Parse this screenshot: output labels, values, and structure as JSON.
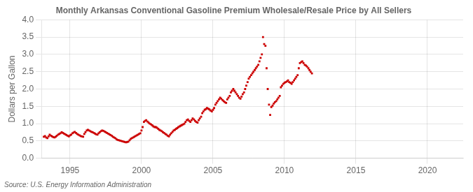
{
  "chart_data": {
    "type": "scatter",
    "title": "Monthly Arkansas Conventional Gasoline Premium Wholesale/Resale Price by All Sellers",
    "ylabel": "Dollars per Gallon",
    "source": "Source: U.S. Energy Information Administration",
    "color": "#cc0000",
    "marker": "square",
    "grid": true,
    "xlim": [
      1993.0,
      2022.5
    ],
    "ylim": [
      0.0,
      4.0
    ],
    "xticks": [
      1995,
      2000,
      2005,
      2010,
      2015,
      2020
    ],
    "yticks": [
      {
        "value": 0.0,
        "label": "0.0"
      },
      0.5,
      {
        "value": 1.0,
        "label": "1.0"
      },
      1.5,
      {
        "value": 2.0,
        "label": "2.0"
      },
      2.5,
      {
        "value": 3.0,
        "label": "3.0"
      },
      3.5,
      {
        "value": 4.0,
        "label": "4.0"
      }
    ],
    "x": [
      1993.17,
      1993.25,
      1993.33,
      1993.42,
      1993.5,
      1993.58,
      1993.67,
      1993.75,
      1993.83,
      1993.92,
      1994.0,
      1994.08,
      1994.17,
      1994.25,
      1994.33,
      1994.42,
      1994.5,
      1994.58,
      1994.67,
      1994.75,
      1994.83,
      1994.92,
      1995.0,
      1995.08,
      1995.17,
      1995.25,
      1995.33,
      1995.42,
      1995.5,
      1995.58,
      1995.67,
      1995.75,
      1995.83,
      1995.92,
      1996.0,
      1996.08,
      1996.17,
      1996.25,
      1996.33,
      1996.42,
      1996.5,
      1996.58,
      1996.67,
      1996.75,
      1996.83,
      1996.92,
      1997.0,
      1997.08,
      1997.17,
      1997.25,
      1997.33,
      1997.42,
      1997.5,
      1997.58,
      1997.67,
      1997.75,
      1997.83,
      1997.92,
      1998.0,
      1998.08,
      1998.17,
      1998.25,
      1998.33,
      1998.42,
      1998.5,
      1998.58,
      1998.67,
      1998.75,
      1998.83,
      1998.92,
      1999.0,
      1999.08,
      1999.17,
      1999.25,
      1999.33,
      1999.42,
      1999.5,
      1999.58,
      1999.67,
      1999.75,
      1999.83,
      1999.92,
      2000.0,
      2000.08,
      2000.17,
      2000.25,
      2000.33,
      2000.42,
      2000.5,
      2000.58,
      2000.67,
      2000.75,
      2000.83,
      2000.92,
      2001.0,
      2001.08,
      2001.17,
      2001.25,
      2001.33,
      2001.42,
      2001.5,
      2001.58,
      2001.67,
      2001.75,
      2001.83,
      2001.92,
      2002.0,
      2002.08,
      2002.17,
      2002.25,
      2002.33,
      2002.42,
      2002.5,
      2002.58,
      2002.67,
      2002.75,
      2002.83,
      2002.92,
      2003.0,
      2003.08,
      2003.17,
      2003.25,
      2003.33,
      2003.42,
      2003.5,
      2003.58,
      2003.67,
      2003.75,
      2003.83,
      2003.92,
      2004.0,
      2004.08,
      2004.17,
      2004.25,
      2004.33,
      2004.42,
      2004.5,
      2004.58,
      2004.67,
      2004.75,
      2004.83,
      2004.92,
      2005.0,
      2005.08,
      2005.17,
      2005.25,
      2005.33,
      2005.42,
      2005.5,
      2005.58,
      2005.67,
      2005.75,
      2005.83,
      2005.92,
      2006.0,
      2006.08,
      2006.17,
      2006.25,
      2006.33,
      2006.42,
      2006.5,
      2006.58,
      2006.67,
      2006.75,
      2006.83,
      2006.92,
      2007.0,
      2007.08,
      2007.17,
      2007.25,
      2007.33,
      2007.42,
      2007.5,
      2007.58,
      2007.67,
      2007.75,
      2007.83,
      2007.92,
      2008.0,
      2008.08,
      2008.17,
      2008.25,
      2008.33,
      2008.42,
      2008.5,
      2008.58,
      2008.67,
      2008.75,
      2008.83,
      2008.92,
      2009.0,
      2009.08,
      2009.17,
      2009.25,
      2009.33,
      2009.42,
      2009.5,
      2009.58,
      2009.67,
      2009.75,
      2009.83,
      2009.92,
      2010.0,
      2010.08,
      2010.17,
      2010.25,
      2010.33,
      2010.42,
      2010.5,
      2010.58,
      2010.67,
      2010.75,
      2010.83,
      2010.92,
      2011.0,
      2011.08,
      2011.17,
      2011.25,
      2011.33,
      2011.42,
      2011.5,
      2011.58,
      2011.67,
      2011.75,
      2011.83,
      2011.92
    ],
    "values": [
      0.62,
      0.64,
      0.6,
      0.58,
      0.63,
      0.68,
      0.65,
      0.63,
      0.61,
      0.6,
      0.62,
      0.65,
      0.68,
      0.7,
      0.72,
      0.75,
      0.73,
      0.71,
      0.69,
      0.67,
      0.65,
      0.63,
      0.66,
      0.68,
      0.72,
      0.74,
      0.76,
      0.73,
      0.7,
      0.68,
      0.66,
      0.64,
      0.63,
      0.62,
      0.7,
      0.75,
      0.8,
      0.82,
      0.8,
      0.78,
      0.76,
      0.75,
      0.73,
      0.71,
      0.69,
      0.68,
      0.72,
      0.75,
      0.78,
      0.8,
      0.79,
      0.77,
      0.75,
      0.73,
      0.71,
      0.69,
      0.67,
      0.65,
      0.62,
      0.6,
      0.58,
      0.55,
      0.53,
      0.52,
      0.51,
      0.5,
      0.49,
      0.48,
      0.47,
      0.46,
      0.47,
      0.48,
      0.52,
      0.56,
      0.58,
      0.6,
      0.62,
      0.64,
      0.66,
      0.68,
      0.7,
      0.72,
      0.8,
      0.9,
      1.05,
      1.08,
      1.1,
      1.06,
      1.03,
      1.0,
      0.98,
      0.95,
      0.92,
      0.9,
      0.9,
      0.88,
      0.85,
      0.82,
      0.8,
      0.78,
      0.75,
      0.73,
      0.7,
      0.68,
      0.65,
      0.63,
      0.68,
      0.72,
      0.76,
      0.8,
      0.82,
      0.85,
      0.87,
      0.9,
      0.92,
      0.94,
      0.96,
      0.98,
      1.0,
      1.05,
      1.1,
      1.12,
      1.08,
      1.05,
      1.1,
      1.15,
      1.12,
      1.08,
      1.05,
      1.03,
      1.1,
      1.15,
      1.2,
      1.3,
      1.35,
      1.4,
      1.42,
      1.45,
      1.43,
      1.41,
      1.38,
      1.35,
      1.4,
      1.45,
      1.55,
      1.6,
      1.65,
      1.7,
      1.75,
      1.72,
      1.68,
      1.65,
      1.62,
      1.6,
      1.7,
      1.75,
      1.8,
      1.9,
      1.95,
      2.0,
      1.95,
      1.9,
      1.85,
      1.8,
      1.75,
      1.72,
      1.78,
      1.85,
      1.9,
      2.0,
      2.1,
      2.2,
      2.3,
      2.35,
      2.4,
      2.45,
      2.5,
      2.55,
      2.6,
      2.65,
      2.7,
      2.8,
      2.9,
      3.0,
      3.5,
      3.3,
      3.25,
      2.6,
      2.0,
      1.55,
      1.25,
      1.48,
      1.52,
      1.58,
      1.62,
      1.65,
      1.7,
      1.75,
      1.8,
      2.05,
      2.1,
      2.15,
      2.18,
      2.2,
      2.22,
      2.25,
      2.2,
      2.18,
      2.15,
      2.2,
      2.25,
      2.3,
      2.35,
      2.4,
      2.6,
      2.75,
      2.78,
      2.8,
      2.75,
      2.7,
      2.68,
      2.65,
      2.6,
      2.55,
      2.5,
      2.45
    ]
  }
}
